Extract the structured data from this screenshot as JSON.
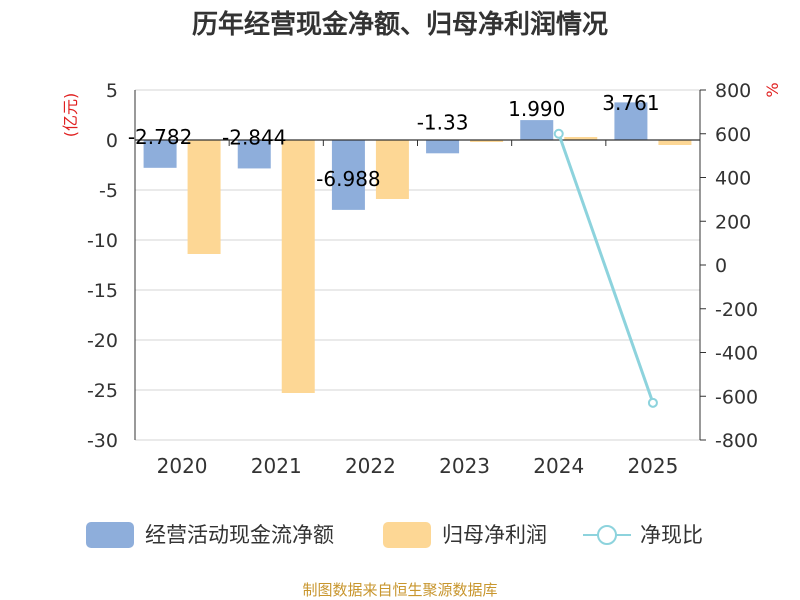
{
  "chart_data": {
    "type": "bar",
    "title": "历年经营现金净额、归母净利润情况",
    "categories": [
      "2020",
      "2021",
      "2022",
      "2023",
      "2024",
      "2025"
    ],
    "series": [
      {
        "name": "经营活动现金流净额",
        "type": "bar",
        "axis": "left",
        "color": "#8eaedb",
        "values": [
          -2.782,
          -2.844,
          -6.988,
          -1.33,
          1.99,
          3.761
        ],
        "labels": [
          "-2.782",
          "-2.844",
          "-6.988",
          "-1.33",
          "1.990",
          "3.761"
        ]
      },
      {
        "name": "归母净利润",
        "type": "bar",
        "axis": "left",
        "color": "#fdd795",
        "values": [
          -11.4,
          -25.3,
          -5.9,
          -0.2,
          0.3,
          -0.5
        ]
      },
      {
        "name": "净现比",
        "type": "line",
        "axis": "right",
        "color": "#8dd3dd",
        "values": [
          null,
          null,
          null,
          null,
          600,
          -630
        ]
      }
    ],
    "left_axis": {
      "label": "(亿元)",
      "min": -30,
      "max": 5,
      "ticks": [
        5,
        0,
        -5,
        -10,
        -15,
        -20,
        -25,
        -30
      ],
      "tick_labels": [
        "5",
        "0",
        "-5",
        "-10",
        "-15",
        "-20",
        "-25",
        "-30"
      ]
    },
    "right_axis": {
      "label": "%",
      "min": -800,
      "max": 800,
      "ticks": [
        800,
        600,
        400,
        200,
        0,
        -200,
        -400,
        -600,
        -800
      ],
      "tick_labels": [
        "800",
        "600",
        "400",
        "200",
        "0",
        "-200",
        "-400",
        "-600",
        "-800"
      ]
    },
    "grid": true,
    "legend": {
      "position": "bottom",
      "items": [
        "经营活动现金流净额",
        "归母净利润",
        "净现比"
      ]
    },
    "source": "制图数据来自恒生聚源数据库"
  }
}
